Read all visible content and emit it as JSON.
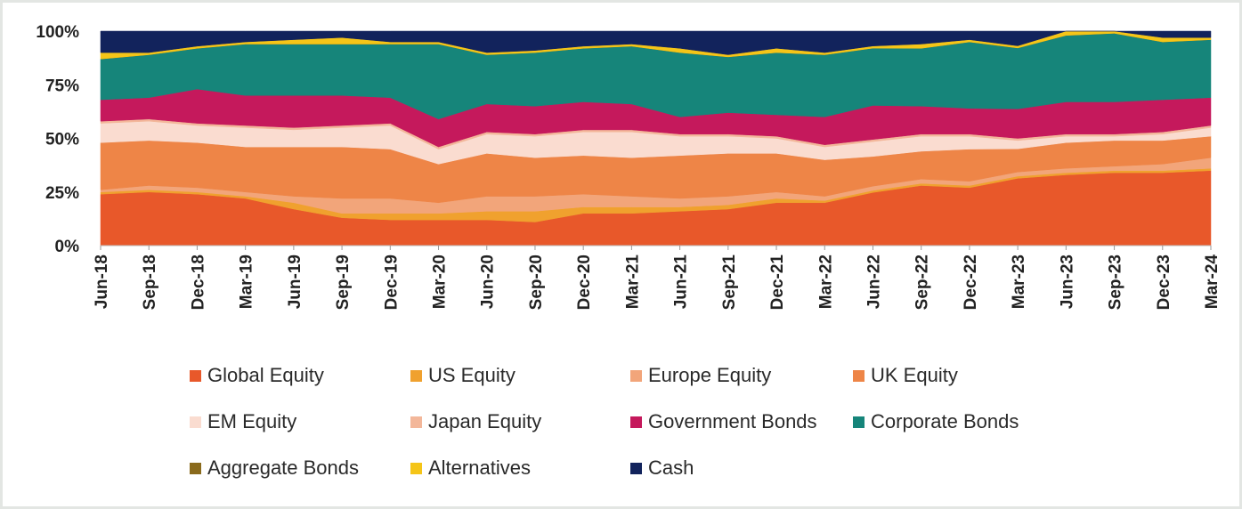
{
  "chart_data": {
    "type": "area",
    "stacked": true,
    "normalized_to_percent": true,
    "title": "",
    "xlabel": "",
    "ylabel": "",
    "ylim": [
      0,
      100
    ],
    "y_ticks": [
      "0%",
      "25%",
      "50%",
      "75%",
      "100%"
    ],
    "y_tick_values": [
      0,
      25,
      50,
      75,
      100
    ],
    "x_ticks": [
      "Jun-18",
      "Sep-18",
      "Dec-18",
      "Mar-19",
      "Jun-19",
      "Sep-19",
      "Dec-19",
      "Mar-20",
      "Jun-20",
      "Sep-20",
      "Dec-20",
      "Mar-21",
      "Jun-21",
      "Sep-21",
      "Dec-21",
      "Mar-22",
      "Jun-22",
      "Sep-22",
      "Dec-22",
      "Mar-23",
      "Jun-23",
      "Sep-23",
      "Dec-23",
      "Mar-24"
    ],
    "x": [
      "Jun-18",
      "Sep-18",
      "Dec-18",
      "Mar-19",
      "Jun-19",
      "Sep-19",
      "Dec-19",
      "Mar-20",
      "Jun-20",
      "Sep-20",
      "Dec-20",
      "Mar-21",
      "Jun-21",
      "Sep-21",
      "Dec-21",
      "Mar-22",
      "Jun-22",
      "Sep-22",
      "Dec-22",
      "Mar-23",
      "Jun-23",
      "Sep-23",
      "Dec-23",
      "Mar-24"
    ],
    "grid": false,
    "legend_position": "bottom",
    "series": [
      {
        "name": "Global Equity",
        "color": "#e8582a",
        "values": [
          24,
          25,
          24,
          22,
          17,
          13,
          12,
          12,
          12,
          11,
          15,
          15,
          16,
          17,
          20,
          20,
          25,
          28,
          27,
          32,
          33,
          34,
          34,
          35
        ]
      },
      {
        "name": "US Equity",
        "color": "#f0a12e",
        "values": [
          1,
          1,
          1,
          1,
          3,
          2,
          3,
          3,
          4,
          5,
          3,
          3,
          2,
          2,
          2,
          1,
          1,
          1,
          1,
          1,
          1,
          1,
          1,
          1
        ]
      },
      {
        "name": "Europe Equity",
        "color": "#f2a57a",
        "values": [
          1,
          2,
          2,
          2,
          3,
          7,
          7,
          5,
          7,
          7,
          6,
          5,
          4,
          4,
          3,
          2,
          2,
          2,
          2,
          2,
          2,
          2,
          3,
          5
        ]
      },
      {
        "name": "UK Equity",
        "color": "#ee8547",
        "values": [
          22,
          21,
          21,
          21,
          23,
          24,
          23,
          18,
          20,
          18,
          18,
          18,
          20,
          20,
          18,
          17,
          14,
          13,
          15,
          11,
          12,
          12,
          11,
          10
        ]
      },
      {
        "name": "EM Equity",
        "color": "#fadcd0",
        "values": [
          9,
          9,
          8,
          9,
          8,
          9,
          11,
          7,
          9,
          10,
          11,
          12,
          9,
          8,
          7,
          6,
          7,
          7,
          6,
          4,
          3,
          2,
          3,
          4
        ]
      },
      {
        "name": "Japan Equity",
        "color": "#f3b79a",
        "values": [
          1,
          1,
          1,
          1,
          1,
          1,
          1,
          1,
          1,
          1,
          1,
          1,
          1,
          1,
          1,
          1,
          1,
          1,
          1,
          1,
          1,
          1,
          1,
          1
        ]
      },
      {
        "name": "Government Bonds",
        "color": "#c5195c",
        "values": [
          10,
          10,
          16,
          14,
          15,
          14,
          12,
          13,
          13,
          13,
          13,
          12,
          8,
          10,
          10,
          13,
          16,
          13,
          12,
          14,
          15,
          15,
          15,
          13
        ]
      },
      {
        "name": "Corporate Bonds",
        "color": "#16857a",
        "values": [
          19,
          20,
          19,
          24,
          24,
          24,
          25,
          35,
          23,
          25,
          25,
          27,
          30,
          26,
          29,
          29,
          27,
          27,
          31,
          29,
          31,
          32,
          27,
          27
        ]
      },
      {
        "name": "Aggregate Bonds",
        "color": "#8a6a1c",
        "values": [
          0,
          0,
          0,
          0,
          0,
          0,
          0,
          0,
          0,
          0,
          0,
          0,
          0,
          0,
          0,
          0,
          0,
          0,
          0,
          0,
          0,
          0,
          0,
          0
        ]
      },
      {
        "name": "Alternatives",
        "color": "#f5c518",
        "values": [
          3,
          1,
          1,
          1,
          2,
          3,
          1,
          1,
          1,
          1,
          1,
          1,
          2,
          1,
          2,
          1,
          1,
          2,
          1,
          1,
          2,
          1,
          2,
          1
        ]
      },
      {
        "name": "Cash",
        "color": "#12235c",
        "values": [
          10,
          10,
          7,
          5,
          4,
          3,
          5,
          5,
          10,
          9,
          7,
          6,
          8,
          11,
          8,
          10,
          7,
          6,
          4,
          7,
          0,
          0,
          3,
          3
        ]
      }
    ]
  }
}
